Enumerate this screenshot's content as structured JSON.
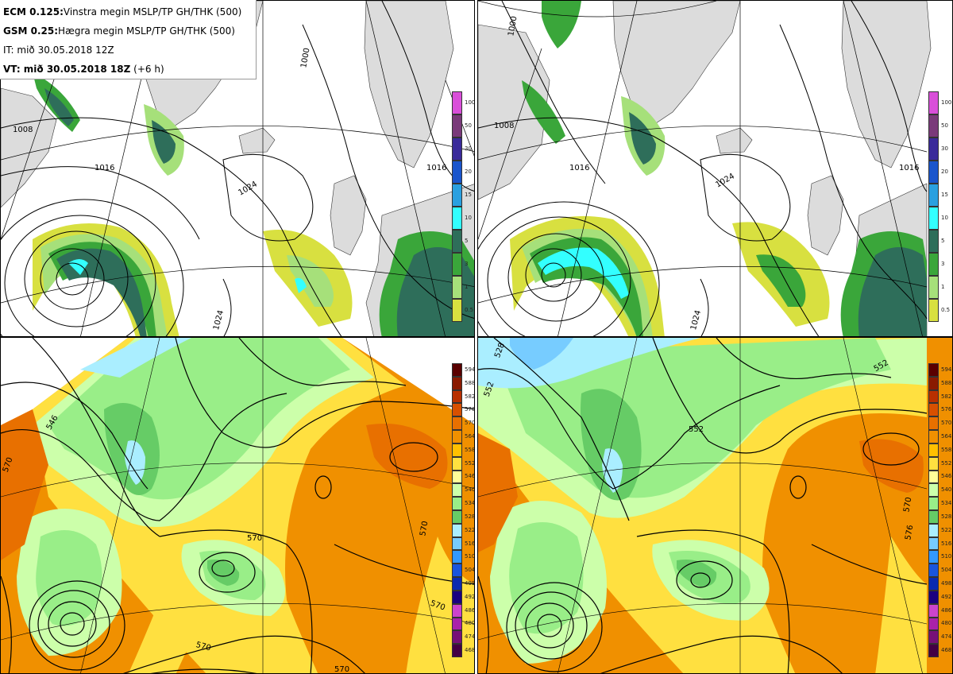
{
  "header": {
    "ecm_bold": "ECM 0.125:",
    "ecm_text": "Vinstra megin MSLP/TP GH/THK (500)",
    "gsm_bold": "GSM 0.25:",
    "gsm_text": "Hægra megin MSLP/TP GH/THK (500)",
    "it_text": "IT: mið 30.05.2018 12Z",
    "vt_bold": "VT: mið 30.05.2018 18Z",
    "vt_text": "(+6 h)"
  },
  "precip_colorbar": {
    "labels": [
      "100",
      "50",
      "30",
      "20",
      "15",
      "10",
      "5",
      "3",
      "1",
      "0.5"
    ],
    "colors": [
      "#d94fd9",
      "#7a3a7a",
      "#3a2a9a",
      "#1a55cc",
      "#2aa0e0",
      "#33ffff",
      "#2e6e5a",
      "#3aa63a",
      "#a6e07a",
      "#d8e040"
    ]
  },
  "thickness_colorbar": {
    "labels": [
      "594",
      "588",
      "582",
      "576",
      "570",
      "564",
      "558",
      "552",
      "546",
      "540",
      "534",
      "528",
      "522",
      "516",
      "510",
      "504",
      "498",
      "492",
      "486",
      "480",
      "474",
      "468"
    ],
    "colors": [
      "#5a0000",
      "#8a1a00",
      "#b83000",
      "#d85000",
      "#e87000",
      "#f09000",
      "#ffc000",
      "#ffe040",
      "#ffff99",
      "#ccffaa",
      "#99ee88",
      "#66cc66",
      "#aaeeff",
      "#77ccff",
      "#3399ff",
      "#1a55dd",
      "#0a2ab0",
      "#1a0080",
      "#cc44cc",
      "#aa22aa",
      "#771177",
      "#440044"
    ]
  },
  "map_colors": {
    "land": "#dcdcdc",
    "sea": "#ffffff",
    "precip_light": "#d8e040",
    "precip_mid": "#a6e07a",
    "precip_green": "#3aa63a",
    "precip_dark": "#2e6e5a",
    "precip_cyan": "#33ffff",
    "thk_yellow": "#ffe040",
    "thk_orange": "#f09000",
    "thk_green": "#99ee88",
    "thk_lightgreen": "#ccffaa",
    "thk_darkgreen": "#66cc66",
    "thk_blue": "#aaeeff"
  },
  "isobar_labels_ecm": [
    "1008",
    "1016",
    "1024",
    "1024",
    "1016",
    "1000"
  ],
  "isobar_labels_gsm": [
    "1008",
    "1016",
    "1024",
    "1024",
    "1016",
    "1000"
  ],
  "thickness_labels_ecm": [
    "546",
    "570",
    "570",
    "570",
    "570",
    "570",
    "570"
  ],
  "thickness_labels_gsm": [
    "528",
    "552",
    "552",
    "552",
    "570",
    "576"
  ]
}
